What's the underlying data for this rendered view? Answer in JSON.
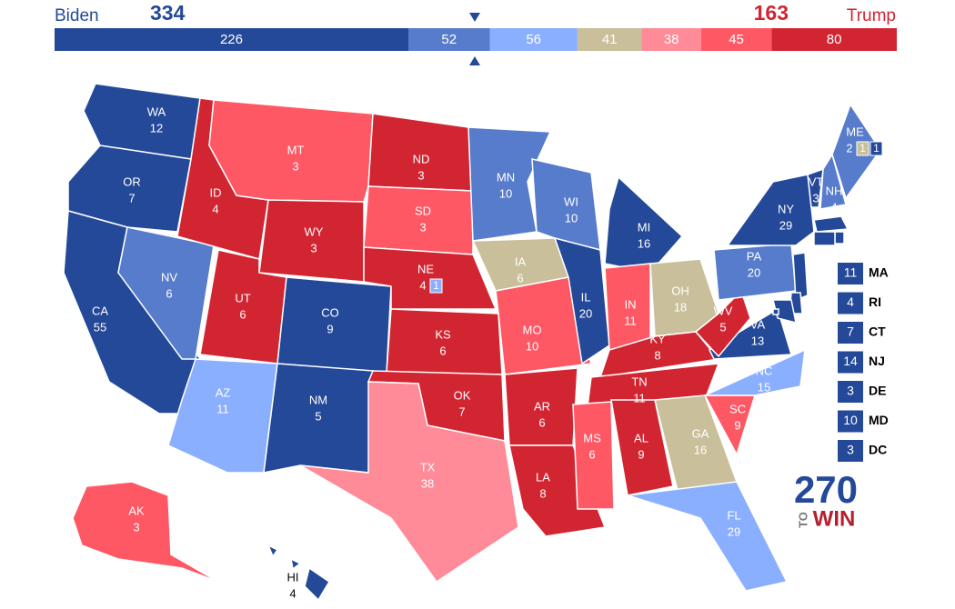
{
  "header": {
    "left": {
      "name": "Biden",
      "total": 334
    },
    "right": {
      "name": "Trump",
      "total": 163
    }
  },
  "bar": [
    {
      "value": 226,
      "color": "#244999"
    },
    {
      "value": 52,
      "color": "#577ccc"
    },
    {
      "value": 56,
      "color": "#8aafff"
    },
    {
      "value": 41,
      "color": "#c9c09b"
    },
    {
      "value": 38,
      "color": "#ff8b98"
    },
    {
      "value": 45,
      "color": "#ff5865"
    },
    {
      "value": 80,
      "color": "#d22532"
    }
  ],
  "states": [
    {
      "abbr": "WA",
      "votes": 12,
      "color": "#244999"
    },
    {
      "abbr": "OR",
      "votes": 7,
      "color": "#244999"
    },
    {
      "abbr": "CA",
      "votes": 55,
      "color": "#244999"
    },
    {
      "abbr": "NV",
      "votes": 6,
      "color": "#577ccc"
    },
    {
      "abbr": "ID",
      "votes": 4,
      "color": "#d22532"
    },
    {
      "abbr": "MT",
      "votes": 3,
      "color": "#ff5865"
    },
    {
      "abbr": "WY",
      "votes": 3,
      "color": "#d22532"
    },
    {
      "abbr": "UT",
      "votes": 6,
      "color": "#d22532"
    },
    {
      "abbr": "AZ",
      "votes": 11,
      "color": "#8aafff"
    },
    {
      "abbr": "CO",
      "votes": 9,
      "color": "#244999"
    },
    {
      "abbr": "NM",
      "votes": 5,
      "color": "#244999"
    },
    {
      "abbr": "ND",
      "votes": 3,
      "color": "#d22532"
    },
    {
      "abbr": "SD",
      "votes": 3,
      "color": "#ff5865"
    },
    {
      "abbr": "NE",
      "votes": 4,
      "color": "#d22532",
      "districts": [
        {
          "votes": 1,
          "color": "#8aafff"
        }
      ]
    },
    {
      "abbr": "KS",
      "votes": 6,
      "color": "#d22532"
    },
    {
      "abbr": "OK",
      "votes": 7,
      "color": "#d22532"
    },
    {
      "abbr": "TX",
      "votes": 38,
      "color": "#ff8b98"
    },
    {
      "abbr": "MN",
      "votes": 10,
      "color": "#577ccc"
    },
    {
      "abbr": "IA",
      "votes": 6,
      "color": "#c9c09b"
    },
    {
      "abbr": "MO",
      "votes": 10,
      "color": "#ff5865"
    },
    {
      "abbr": "AR",
      "votes": 6,
      "color": "#d22532"
    },
    {
      "abbr": "LA",
      "votes": 8,
      "color": "#d22532"
    },
    {
      "abbr": "WI",
      "votes": 10,
      "color": "#577ccc"
    },
    {
      "abbr": "IL",
      "votes": 20,
      "color": "#244999"
    },
    {
      "abbr": "MI",
      "votes": 16,
      "color": "#244999"
    },
    {
      "abbr": "IN",
      "votes": 11,
      "color": "#ff5865"
    },
    {
      "abbr": "OH",
      "votes": 18,
      "color": "#c9c09b"
    },
    {
      "abbr": "KY",
      "votes": 8,
      "color": "#d22532"
    },
    {
      "abbr": "TN",
      "votes": 11,
      "color": "#d22532"
    },
    {
      "abbr": "MS",
      "votes": 6,
      "color": "#ff5865"
    },
    {
      "abbr": "AL",
      "votes": 9,
      "color": "#d22532"
    },
    {
      "abbr": "GA",
      "votes": 16,
      "color": "#c9c09b"
    },
    {
      "abbr": "FL",
      "votes": 29,
      "color": "#8aafff"
    },
    {
      "abbr": "SC",
      "votes": 9,
      "color": "#ff5865"
    },
    {
      "abbr": "NC",
      "votes": 15,
      "color": "#8aafff"
    },
    {
      "abbr": "VA",
      "votes": 13,
      "color": "#244999"
    },
    {
      "abbr": "WV",
      "votes": 5,
      "color": "#d22532"
    },
    {
      "abbr": "PA",
      "votes": 20,
      "color": "#577ccc"
    },
    {
      "abbr": "NY",
      "votes": 29,
      "color": "#244999"
    },
    {
      "abbr": "VT",
      "votes": 3,
      "color": "#244999"
    },
    {
      "abbr": "NH",
      "votes": 4,
      "color": "#577ccc"
    },
    {
      "abbr": "ME",
      "votes": 2,
      "color": "#577ccc",
      "districts": [
        {
          "votes": 1,
          "color": "#c9c09b"
        },
        {
          "votes": 1,
          "color": "#244999"
        }
      ]
    },
    {
      "abbr": "AK",
      "votes": 3,
      "color": "#ff5865"
    },
    {
      "abbr": "HI",
      "votes": 4,
      "color": "#244999"
    }
  ],
  "small_states": [
    {
      "abbr": "MA",
      "votes": 11,
      "color": "#244999"
    },
    {
      "abbr": "RI",
      "votes": 4,
      "color": "#244999"
    },
    {
      "abbr": "CT",
      "votes": 7,
      "color": "#244999"
    },
    {
      "abbr": "NJ",
      "votes": 14,
      "color": "#244999"
    },
    {
      "abbr": "DE",
      "votes": 3,
      "color": "#244999"
    },
    {
      "abbr": "MD",
      "votes": 10,
      "color": "#244999"
    },
    {
      "abbr": "DC",
      "votes": 3,
      "color": "#244999"
    }
  ],
  "logo": {
    "number": "270",
    "to": "TO",
    "win": "WIN"
  }
}
